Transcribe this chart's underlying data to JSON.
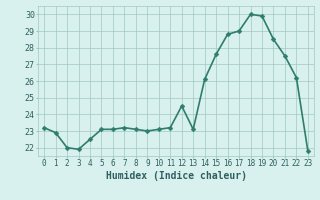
{
  "xlabel": "Humidex (Indice chaleur)",
  "hours": [
    0,
    1,
    2,
    3,
    4,
    5,
    6,
    7,
    8,
    9,
    10,
    11,
    12,
    13,
    14,
    15,
    16,
    17,
    18,
    19,
    20,
    21,
    22,
    23
  ],
  "values": [
    23.2,
    22.9,
    22.0,
    21.9,
    22.5,
    23.1,
    23.1,
    23.2,
    23.1,
    23.0,
    23.1,
    23.2,
    24.5,
    23.1,
    26.1,
    27.6,
    28.8,
    29.0,
    30.0,
    29.9,
    28.5,
    27.5,
    26.2,
    21.8
  ],
  "ylim": [
    21.5,
    30.5
  ],
  "yticks": [
    22,
    23,
    24,
    25,
    26,
    27,
    28,
    29,
    30
  ],
  "line_color": "#2e7d6e",
  "marker_color": "#2e7d6e",
  "bg_color": "#d8f0ee",
  "grid_color": "#a0c8c0",
  "tick_label_color": "#2e6060",
  "xlabel_color": "#2e6060",
  "tick_fontsize": 5.5,
  "xlabel_fontsize": 7.0,
  "line_width": 1.2,
  "marker_size": 2.5
}
